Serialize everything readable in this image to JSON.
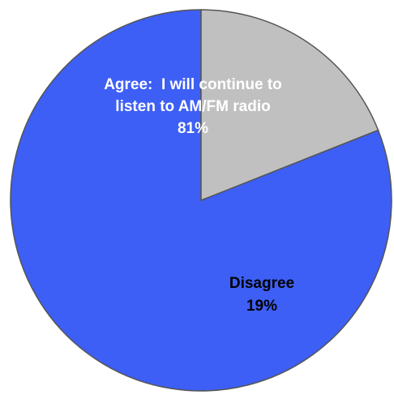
{
  "chart_data": {
    "type": "pie",
    "start": "12 o'clock",
    "direction": "counterclockwise",
    "slices": [
      {
        "label_lines": [
          "Agree:  I will continue to",
          "listen to AM/FM radio"
        ],
        "value": 81,
        "value_label": "81%",
        "color": "#3d5ff5",
        "text_color": "#ffffff"
      },
      {
        "label_lines": [
          "Disagree"
        ],
        "value": 19,
        "value_label": "19%",
        "color": "#c0c0c0",
        "text_color": "#000000"
      }
    ],
    "edge_color": "#555555"
  }
}
